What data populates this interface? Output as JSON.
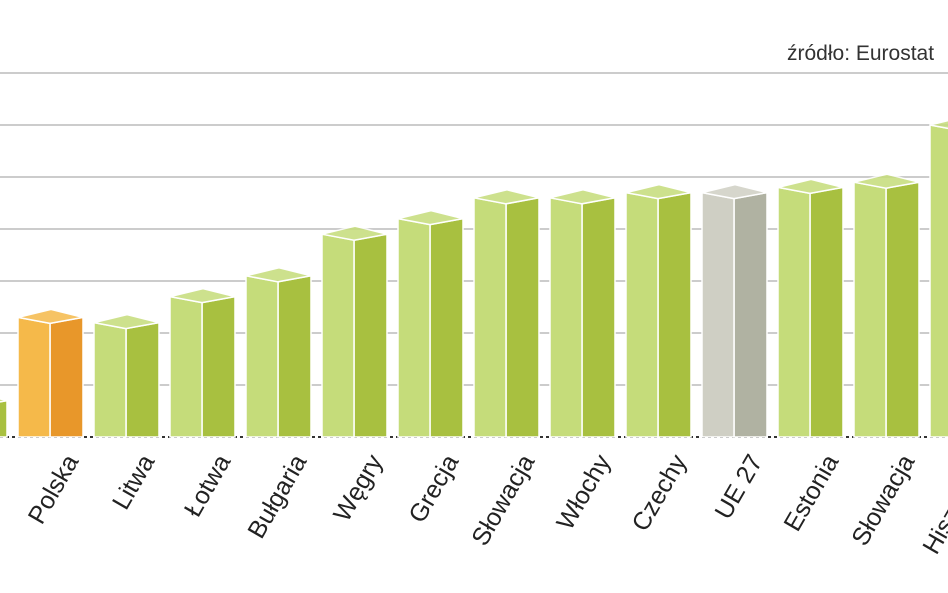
{
  "chart_data": {
    "type": "bar3d",
    "source": "źródło: Eurostat",
    "categories": [
      null,
      "Polska",
      "Litwa",
      "Łotwa",
      "Bułgaria",
      "Węgry",
      "Grecja",
      "Słowacja",
      "Włochy",
      "Czechy",
      "UE 27",
      "Estonia",
      "Słowacja",
      "Hiszpania"
    ],
    "values": [
      0.7,
      2.3,
      2.2,
      2.7,
      3.1,
      3.9,
      4.2,
      4.6,
      4.6,
      4.7,
      4.7,
      4.8,
      4.9,
      6.0
    ],
    "colors": [
      "#c5dc7a",
      "#f5b94a",
      "#c5dc7a",
      "#c5dc7a",
      "#c5dc7a",
      "#c5dc7a",
      "#c5dc7a",
      "#c5dc7a",
      "#c5dc7a",
      "#c5dc7a",
      "#cfcfc4",
      "#c5dc7a",
      "#c5dc7a",
      "#c5dc7a"
    ],
    "side_colors": [
      "#a8c040",
      "#e8972a",
      "#a8c040",
      "#a8c040",
      "#a8c040",
      "#a8c040",
      "#a8c040",
      "#a8c040",
      "#a8c040",
      "#a8c040",
      "#b0b2a2",
      "#a8c040",
      "#a8c040",
      "#a8c040"
    ],
    "ylim": [
      0,
      7
    ],
    "gridlines": [
      0,
      1,
      2,
      3,
      4,
      5,
      6,
      7
    ],
    "grid": true
  }
}
